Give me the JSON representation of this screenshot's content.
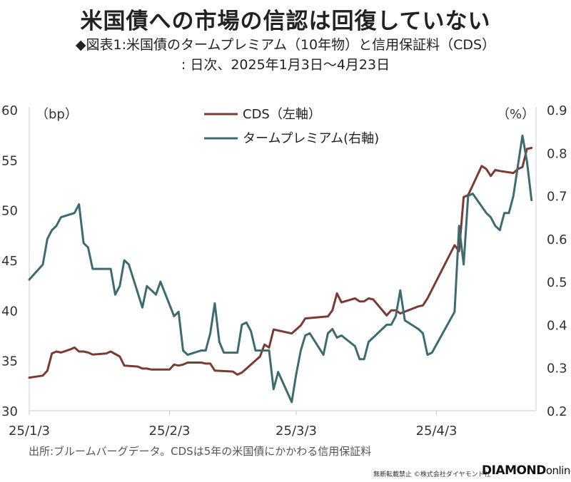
{
  "header": {
    "title": "米国債への市場の信認は回復していない",
    "subtitle": "◆図表1:米国債のタームプレミアム（10年物）と信用保証料（CDS）",
    "subtitle2": ": 日次、2025年1月3日〜4月23日"
  },
  "footer": {
    "source": "出所:ブルームバーグデータ。CDSは5年の米国債にかかわる信用保証料",
    "copyright": "無断転載禁止 ©株式会社ダイヤモンド社",
    "logo_main": "DIAMOND",
    "logo_sub": "online"
  },
  "chart_data": {
    "type": "line",
    "left_unit": "（bp）",
    "right_unit": "（%）",
    "x_ticks": [
      {
        "label": "25/1/3",
        "day": 0
      },
      {
        "label": "25/2/3",
        "day": 31
      },
      {
        "label": "25/3/3",
        "day": 59
      },
      {
        "label": "25/4/3",
        "day": 90
      }
    ],
    "x_range": [
      0,
      112
    ],
    "left_axis": {
      "min": 30,
      "max": 60,
      "ticks": [
        30,
        35,
        40,
        45,
        50,
        55,
        60
      ]
    },
    "right_axis": {
      "min": 0.2,
      "max": 0.9,
      "ticks": [
        "0.2",
        "0.3",
        "0.4",
        "0.5",
        "0.6",
        "0.7",
        "0.8",
        "0.9"
      ]
    },
    "colors": {
      "cds": "#7b3b30",
      "term": "#3d6b70"
    },
    "series": [
      {
        "name": "CDS（左軸）",
        "axis": "left",
        "points": [
          [
            0,
            33.3
          ],
          [
            3,
            33.5
          ],
          [
            4,
            34.0
          ],
          [
            5,
            35.7
          ],
          [
            6,
            35.9
          ],
          [
            7,
            35.8
          ],
          [
            9,
            36.1
          ],
          [
            10,
            36.3
          ],
          [
            11,
            35.9
          ],
          [
            12,
            35.9
          ],
          [
            13,
            35.8
          ],
          [
            14,
            35.6
          ],
          [
            17,
            35.7
          ],
          [
            18,
            35.9
          ],
          [
            20,
            35.4
          ],
          [
            21,
            34.5
          ],
          [
            24,
            34.4
          ],
          [
            25,
            34.2
          ],
          [
            26,
            34.2
          ],
          [
            27,
            34.1
          ],
          [
            28,
            34.1
          ],
          [
            31,
            34.1
          ],
          [
            32,
            34.6
          ],
          [
            33,
            34.5
          ],
          [
            34,
            34.6
          ],
          [
            35,
            34.8
          ],
          [
            38,
            34.8
          ],
          [
            39,
            34.7
          ],
          [
            40,
            34.7
          ],
          [
            41,
            34.0
          ],
          [
            45,
            33.9
          ],
          [
            46,
            33.6
          ],
          [
            47,
            33.8
          ],
          [
            48,
            34.2
          ],
          [
            51,
            35.4
          ],
          [
            52,
            36.6
          ],
          [
            53,
            36.3
          ],
          [
            54,
            38.1
          ],
          [
            55,
            38.0
          ],
          [
            58,
            37.7
          ],
          [
            59,
            38.1
          ],
          [
            60,
            38.5
          ],
          [
            61,
            39.2
          ],
          [
            66,
            39.4
          ],
          [
            67,
            40.0
          ],
          [
            68,
            41.7
          ],
          [
            69,
            40.8
          ],
          [
            72,
            41.2
          ],
          [
            73,
            40.9
          ],
          [
            74,
            40.9
          ],
          [
            75,
            41.2
          ],
          [
            76,
            41.1
          ],
          [
            79,
            39.5
          ],
          [
            80,
            40.0
          ],
          [
            81,
            40.0
          ],
          [
            82,
            39.7
          ],
          [
            86,
            40.4
          ],
          [
            87,
            40.5
          ],
          [
            88,
            41.2
          ],
          [
            94,
            46.5
          ],
          [
            95,
            45.9
          ],
          [
            96,
            51.3
          ],
          [
            97,
            51.5
          ],
          [
            100,
            54.4
          ],
          [
            101,
            54.1
          ],
          [
            102,
            53.4
          ],
          [
            103,
            54.0
          ],
          [
            104,
            53.9
          ],
          [
            107,
            53.7
          ],
          [
            108,
            54.1
          ],
          [
            109,
            54.3
          ],
          [
            110,
            56.1
          ],
          [
            111,
            56.2
          ]
        ]
      },
      {
        "name": "タームプレミアム(右軸)",
        "axis": "right",
        "points": [
          [
            0,
            0.505
          ],
          [
            3,
            0.54
          ],
          [
            4,
            0.6
          ],
          [
            5,
            0.62
          ],
          [
            6,
            0.63
          ],
          [
            7,
            0.65
          ],
          [
            10,
            0.66
          ],
          [
            11,
            0.68
          ],
          [
            12,
            0.59
          ],
          [
            13,
            0.58
          ],
          [
            14,
            0.53
          ],
          [
            17,
            0.53
          ],
          [
            18,
            0.53
          ],
          [
            19,
            0.47
          ],
          [
            20,
            0.49
          ],
          [
            21,
            0.55
          ],
          [
            22,
            0.54
          ],
          [
            25,
            0.44
          ],
          [
            26,
            0.49
          ],
          [
            27,
            0.48
          ],
          [
            28,
            0.47
          ],
          [
            29,
            0.5
          ],
          [
            32,
            0.42
          ],
          [
            33,
            0.43
          ],
          [
            34,
            0.34
          ],
          [
            35,
            0.33
          ],
          [
            38,
            0.34
          ],
          [
            39,
            0.34
          ],
          [
            40,
            0.38
          ],
          [
            41,
            0.45
          ],
          [
            42,
            0.36
          ],
          [
            43,
            0.335
          ],
          [
            46,
            0.335
          ],
          [
            47,
            0.4
          ],
          [
            48,
            0.405
          ],
          [
            49,
            0.385
          ],
          [
            50,
            0.34
          ],
          [
            53,
            0.34
          ],
          [
            54,
            0.25
          ],
          [
            55,
            0.29
          ],
          [
            58,
            0.22
          ],
          [
            59,
            0.285
          ],
          [
            60,
            0.34
          ],
          [
            61,
            0.375
          ],
          [
            62,
            0.38
          ],
          [
            65,
            0.33
          ],
          [
            66,
            0.38
          ],
          [
            67,
            0.39
          ],
          [
            68,
            0.37
          ],
          [
            69,
            0.375
          ],
          [
            72,
            0.35
          ],
          [
            73,
            0.32
          ],
          [
            74,
            0.32
          ],
          [
            75,
            0.36
          ],
          [
            76,
            0.37
          ],
          [
            79,
            0.4
          ],
          [
            80,
            0.4
          ],
          [
            81,
            0.42
          ],
          [
            82,
            0.48
          ],
          [
            83,
            0.41
          ],
          [
            86,
            0.39
          ],
          [
            87,
            0.38
          ],
          [
            88,
            0.33
          ],
          [
            89,
            0.335
          ],
          [
            94,
            0.43
          ],
          [
            95,
            0.63
          ],
          [
            96,
            0.54
          ],
          [
            97,
            0.7
          ],
          [
            98,
            0.705
          ],
          [
            101,
            0.66
          ],
          [
            102,
            0.65
          ],
          [
            103,
            0.63
          ],
          [
            104,
            0.62
          ],
          [
            105,
            0.66
          ],
          [
            106,
            0.66
          ],
          [
            107,
            0.7
          ],
          [
            108,
            0.77
          ],
          [
            109,
            0.84
          ],
          [
            110,
            0.78
          ],
          [
            111,
            0.69
          ]
        ]
      }
    ],
    "legend_position": "top-center",
    "grid": false
  }
}
